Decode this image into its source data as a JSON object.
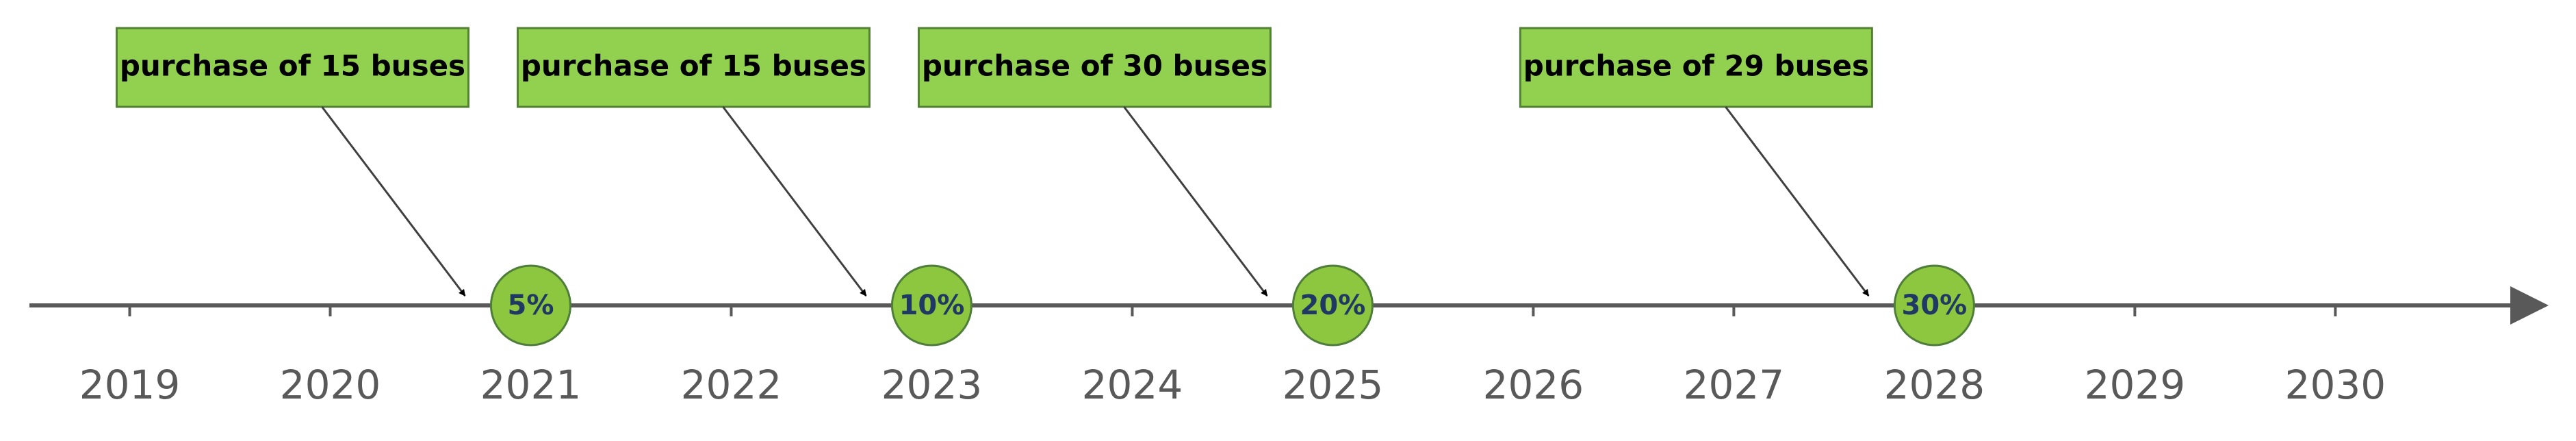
{
  "chart_data": {
    "type": "timeline",
    "xlim": [
      2018.5,
      2031.05
    ],
    "xticks": [
      2019,
      2020,
      2021,
      2022,
      2023,
      2024,
      2025,
      2026,
      2027,
      2028,
      2029,
      2030
    ],
    "x": [
      2021,
      2023,
      2025,
      2028
    ],
    "values": [
      5,
      10,
      20,
      30
    ],
    "value_labels": [
      "5%",
      "10%",
      "20%",
      "30%"
    ],
    "annotations": [
      "purchase of 15 buses",
      "purchase of 15 buses",
      "purchase of 30 buses",
      "purchase of 29 buses"
    ],
    "color": "#8dc63f"
  }
}
